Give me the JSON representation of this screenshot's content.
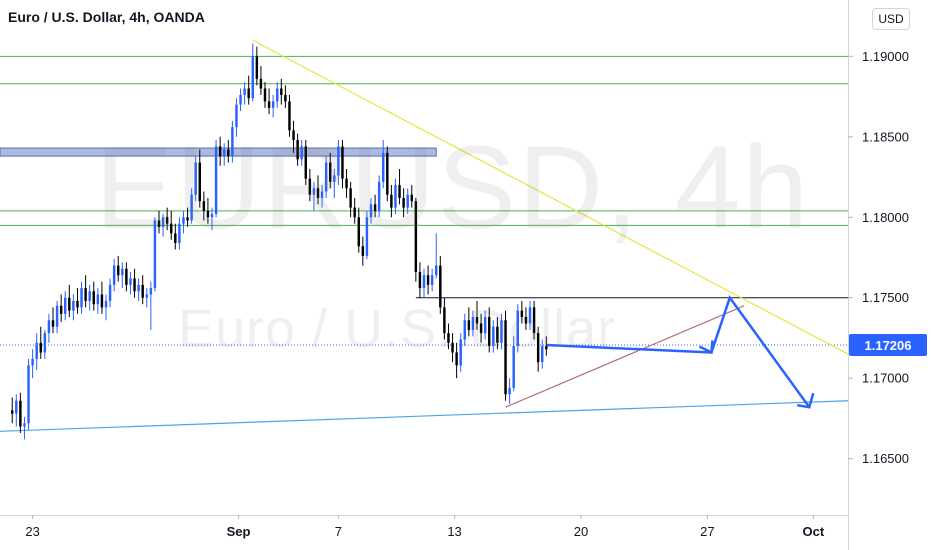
{
  "header": {
    "title": "Euro / U.S. Dollar, 4h, OANDA",
    "currency_button": "USD"
  },
  "watermark": {
    "symbol": "EURUSD, 4h",
    "name": "Euro / U.S. Dollar"
  },
  "last_price_label": "1.17206",
  "colors": {
    "up_candle": "#2962ff",
    "down_candle": "#000000",
    "resistance_lines": "#4caf50",
    "trendline_down": "#e6e63c",
    "trendline_support": "#4da3e6",
    "zone": "#8fa3d6",
    "projection": "#2962ff",
    "price_tag": "#2962ff"
  },
  "chart_data": {
    "type": "candlestick",
    "title": "Euro / U.S. Dollar, 4h, OANDA",
    "y_ticks": [
      "1.19000",
      "1.18500",
      "1.18000",
      "1.17500",
      "1.17000",
      "1.16500"
    ],
    "ylim": [
      1.1615,
      1.1935
    ],
    "x_ticks": [
      {
        "label": "23",
        "x": 0.0
      },
      {
        "label": "Sep",
        "x": 10.1
      },
      {
        "label": "7",
        "x": 15.0
      },
      {
        "label": "13",
        "x": 20.7
      },
      {
        "label": "20",
        "x": 26.9
      },
      {
        "label": "27",
        "x": 33.1
      },
      {
        "label": "Oct",
        "x": 38.3
      }
    ],
    "xlim": [
      -1.6,
      40.0
    ],
    "last_price": 1.17206,
    "candles": [
      [
        -1.0,
        1.168,
        1.1688,
        1.1672,
        1.1678
      ],
      [
        -0.8,
        1.1678,
        1.169,
        1.167,
        1.1686
      ],
      [
        -0.6,
        1.1686,
        1.1691,
        1.1666,
        1.167
      ],
      [
        -0.4,
        1.167,
        1.1676,
        1.1662,
        1.1672
      ],
      [
        -0.2,
        1.1672,
        1.1712,
        1.1668,
        1.1708
      ],
      [
        0.0,
        1.1708,
        1.1718,
        1.17,
        1.1712
      ],
      [
        0.2,
        1.1712,
        1.1728,
        1.1705,
        1.1722
      ],
      [
        0.4,
        1.1722,
        1.1732,
        1.1712,
        1.1716
      ],
      [
        0.6,
        1.1716,
        1.173,
        1.1712,
        1.1728
      ],
      [
        0.8,
        1.1728,
        1.174,
        1.1722,
        1.1736
      ],
      [
        1.0,
        1.1736,
        1.1744,
        1.1728,
        1.1732
      ],
      [
        1.2,
        1.1732,
        1.1748,
        1.1728,
        1.1745
      ],
      [
        1.4,
        1.1745,
        1.1752,
        1.1735,
        1.174
      ],
      [
        1.6,
        1.174,
        1.1754,
        1.1736,
        1.175
      ],
      [
        1.8,
        1.175,
        1.1758,
        1.1738,
        1.1742
      ],
      [
        2.0,
        1.1742,
        1.1752,
        1.1736,
        1.1748
      ],
      [
        2.2,
        1.1748,
        1.1756,
        1.174,
        1.1744
      ],
      [
        2.4,
        1.1744,
        1.176,
        1.174,
        1.1756
      ],
      [
        2.6,
        1.1756,
        1.1764,
        1.1744,
        1.1748
      ],
      [
        2.8,
        1.1748,
        1.1758,
        1.1742,
        1.1754
      ],
      [
        3.0,
        1.1754,
        1.176,
        1.1742,
        1.1746
      ],
      [
        3.2,
        1.1746,
        1.1756,
        1.174,
        1.1752
      ],
      [
        3.4,
        1.1752,
        1.176,
        1.174,
        1.1744
      ],
      [
        3.6,
        1.1744,
        1.1752,
        1.1736,
        1.1748
      ],
      [
        3.8,
        1.1748,
        1.1762,
        1.1744,
        1.1758
      ],
      [
        4.0,
        1.1758,
        1.1774,
        1.1754,
        1.177
      ],
      [
        4.2,
        1.177,
        1.1776,
        1.176,
        1.1764
      ],
      [
        4.4,
        1.1764,
        1.1772,
        1.1756,
        1.1768
      ],
      [
        4.6,
        1.1768,
        1.1772,
        1.1754,
        1.1758
      ],
      [
        4.8,
        1.1758,
        1.1766,
        1.1752,
        1.1762
      ],
      [
        5.0,
        1.1762,
        1.1768,
        1.175,
        1.1754
      ],
      [
        5.2,
        1.1754,
        1.1762,
        1.1748,
        1.1758
      ],
      [
        5.4,
        1.1758,
        1.1764,
        1.1746,
        1.175
      ],
      [
        5.6,
        1.175,
        1.1756,
        1.1744,
        1.1752
      ],
      [
        5.8,
        1.1752,
        1.176,
        1.173,
        1.1756
      ],
      [
        6.0,
        1.1756,
        1.18,
        1.1754,
        1.1798
      ],
      [
        6.2,
        1.1798,
        1.1804,
        1.179,
        1.1794
      ],
      [
        6.4,
        1.1794,
        1.1802,
        1.1788,
        1.18
      ],
      [
        6.6,
        1.18,
        1.1806,
        1.1792,
        1.1796
      ],
      [
        6.8,
        1.1796,
        1.1804,
        1.1786,
        1.179
      ],
      [
        7.0,
        1.179,
        1.1796,
        1.178,
        1.1784
      ],
      [
        7.2,
        1.1784,
        1.18,
        1.178,
        1.1796
      ],
      [
        7.4,
        1.1796,
        1.1804,
        1.179,
        1.18
      ],
      [
        7.6,
        1.18,
        1.1806,
        1.1794,
        1.1798
      ],
      [
        7.8,
        1.1798,
        1.1818,
        1.1796,
        1.1814
      ],
      [
        8.0,
        1.1814,
        1.1838,
        1.181,
        1.1834
      ],
      [
        8.2,
        1.1834,
        1.1842,
        1.1806,
        1.181
      ],
      [
        8.4,
        1.181,
        1.1816,
        1.1798,
        1.1804
      ],
      [
        8.6,
        1.1804,
        1.1812,
        1.1796,
        1.18
      ],
      [
        8.8,
        1.18,
        1.1806,
        1.1792,
        1.1802
      ],
      [
        9.0,
        1.1802,
        1.1848,
        1.18,
        1.1844
      ],
      [
        9.2,
        1.1844,
        1.185,
        1.1832,
        1.1838
      ],
      [
        9.4,
        1.1838,
        1.1846,
        1.1832,
        1.1842
      ],
      [
        9.6,
        1.1842,
        1.1848,
        1.1834,
        1.1838
      ],
      [
        9.8,
        1.1838,
        1.186,
        1.1834,
        1.1856
      ],
      [
        10.0,
        1.1856,
        1.1874,
        1.185,
        1.187
      ],
      [
        10.2,
        1.187,
        1.188,
        1.1866,
        1.1876
      ],
      [
        10.4,
        1.1876,
        1.1884,
        1.187,
        1.188
      ],
      [
        10.6,
        1.188,
        1.1888,
        1.187,
        1.1874
      ],
      [
        10.8,
        1.1874,
        1.1908,
        1.1872,
        1.19
      ],
      [
        11.0,
        1.19,
        1.1906,
        1.1882,
        1.1886
      ],
      [
        11.2,
        1.1886,
        1.1894,
        1.1876,
        1.188
      ],
      [
        11.4,
        1.188,
        1.1884,
        1.1868,
        1.1872
      ],
      [
        11.6,
        1.1872,
        1.188,
        1.1864,
        1.1868
      ],
      [
        11.8,
        1.1868,
        1.1876,
        1.1862,
        1.1872
      ],
      [
        12.0,
        1.1872,
        1.1884,
        1.1868,
        1.188
      ],
      [
        12.2,
        1.188,
        1.1886,
        1.187,
        1.1876
      ],
      [
        12.4,
        1.1876,
        1.1882,
        1.1868,
        1.1872
      ],
      [
        12.6,
        1.1872,
        1.1876,
        1.185,
        1.1854
      ],
      [
        12.8,
        1.1854,
        1.186,
        1.184,
        1.1848
      ],
      [
        13.0,
        1.1848,
        1.1852,
        1.1832,
        1.1836
      ],
      [
        13.2,
        1.1836,
        1.1848,
        1.1832,
        1.1844
      ],
      [
        13.4,
        1.1844,
        1.1848,
        1.182,
        1.1824
      ],
      [
        13.6,
        1.1824,
        1.183,
        1.181,
        1.1814
      ],
      [
        13.8,
        1.1814,
        1.1822,
        1.1804,
        1.1818
      ],
      [
        14.0,
        1.1818,
        1.1826,
        1.1808,
        1.1812
      ],
      [
        14.2,
        1.1812,
        1.182,
        1.1806,
        1.1816
      ],
      [
        14.4,
        1.1816,
        1.1838,
        1.1812,
        1.1834
      ],
      [
        14.6,
        1.1834,
        1.184,
        1.1818,
        1.1822
      ],
      [
        14.8,
        1.1822,
        1.183,
        1.1812,
        1.1826
      ],
      [
        15.0,
        1.1826,
        1.1848,
        1.182,
        1.1844
      ],
      [
        15.2,
        1.1844,
        1.1848,
        1.1818,
        1.1824
      ],
      [
        15.4,
        1.1824,
        1.183,
        1.1812,
        1.1818
      ],
      [
        15.6,
        1.1818,
        1.1822,
        1.18,
        1.1806
      ],
      [
        15.8,
        1.1806,
        1.1812,
        1.1796,
        1.18
      ],
      [
        16.0,
        1.18,
        1.1806,
        1.1778,
        1.1782
      ],
      [
        16.2,
        1.1782,
        1.1788,
        1.177,
        1.1776
      ],
      [
        16.4,
        1.1776,
        1.1804,
        1.1774,
        1.18
      ],
      [
        16.6,
        1.18,
        1.1812,
        1.1796,
        1.1808
      ],
      [
        16.8,
        1.1808,
        1.1814,
        1.18,
        1.1804
      ],
      [
        17.0,
        1.1804,
        1.1826,
        1.18,
        1.1822
      ],
      [
        17.2,
        1.1822,
        1.1848,
        1.1818,
        1.184
      ],
      [
        17.4,
        1.184,
        1.1844,
        1.181,
        1.1814
      ],
      [
        17.6,
        1.1814,
        1.182,
        1.18,
        1.1806
      ],
      [
        17.8,
        1.1806,
        1.1824,
        1.1802,
        1.182
      ],
      [
        18.0,
        1.182,
        1.183,
        1.1808,
        1.1812
      ],
      [
        18.2,
        1.1812,
        1.1818,
        1.18,
        1.1806
      ],
      [
        18.4,
        1.1806,
        1.1818,
        1.1802,
        1.1814
      ],
      [
        18.6,
        1.1814,
        1.182,
        1.1806,
        1.181
      ],
      [
        18.8,
        1.181,
        1.1812,
        1.176,
        1.1766
      ],
      [
        19.0,
        1.1766,
        1.1772,
        1.175,
        1.1756
      ],
      [
        19.2,
        1.1756,
        1.1768,
        1.175,
        1.1764
      ],
      [
        19.4,
        1.1764,
        1.177,
        1.1752,
        1.1758
      ],
      [
        19.6,
        1.1758,
        1.1768,
        1.1754,
        1.1764
      ],
      [
        19.8,
        1.1764,
        1.179,
        1.1762,
        1.177
      ],
      [
        20.0,
        1.177,
        1.1776,
        1.174,
        1.1744
      ],
      [
        20.2,
        1.1744,
        1.175,
        1.1724,
        1.1728
      ],
      [
        20.4,
        1.1728,
        1.1734,
        1.1718,
        1.1722
      ],
      [
        20.6,
        1.1722,
        1.1728,
        1.171,
        1.1716
      ],
      [
        20.8,
        1.1716,
        1.1722,
        1.17,
        1.1708
      ],
      [
        21.0,
        1.1708,
        1.1728,
        1.1704,
        1.1724
      ],
      [
        21.2,
        1.1724,
        1.174,
        1.172,
        1.1736
      ],
      [
        21.4,
        1.1736,
        1.1744,
        1.1726,
        1.173
      ],
      [
        21.6,
        1.173,
        1.1742,
        1.1726,
        1.1738
      ],
      [
        21.8,
        1.1738,
        1.1748,
        1.173,
        1.1734
      ],
      [
        22.0,
        1.1734,
        1.174,
        1.1722,
        1.1728
      ],
      [
        22.2,
        1.1728,
        1.1742,
        1.1724,
        1.1738
      ],
      [
        22.4,
        1.1738,
        1.1744,
        1.1716,
        1.172
      ],
      [
        22.6,
        1.172,
        1.1736,
        1.1716,
        1.1732
      ],
      [
        22.8,
        1.1732,
        1.1738,
        1.1718,
        1.1722
      ],
      [
        23.0,
        1.1722,
        1.174,
        1.1718,
        1.1736
      ],
      [
        23.2,
        1.1736,
        1.1742,
        1.1686,
        1.169
      ],
      [
        23.4,
        1.169,
        1.17,
        1.1684,
        1.1694
      ],
      [
        23.6,
        1.1694,
        1.1726,
        1.1692,
        1.172
      ],
      [
        23.8,
        1.172,
        1.1746,
        1.1716,
        1.1742
      ],
      [
        24.0,
        1.1742,
        1.1748,
        1.1734,
        1.1738
      ],
      [
        24.2,
        1.1738,
        1.1744,
        1.173,
        1.1734
      ],
      [
        24.4,
        1.1734,
        1.1748,
        1.173,
        1.1744
      ],
      [
        24.6,
        1.1744,
        1.1748,
        1.1724,
        1.1728
      ],
      [
        24.8,
        1.1728,
        1.1732,
        1.1704,
        1.171
      ],
      [
        25.0,
        1.171,
        1.1724,
        1.1706,
        1.172
      ],
      [
        25.2,
        1.172,
        1.1726,
        1.1714,
        1.1718
      ]
    ],
    "annotations": [
      {
        "type": "hline",
        "color": "green",
        "y": 1.19,
        "x_from": -1.6,
        "x_to": 40.0
      },
      {
        "type": "hline",
        "color": "green",
        "y": 1.1883,
        "x_from": -1.6,
        "x_to": 40.0
      },
      {
        "type": "hline",
        "color": "green",
        "y": 1.1804,
        "x_from": -1.6,
        "x_to": 40.0
      },
      {
        "type": "hline",
        "color": "green",
        "y": 1.1795,
        "x_from": -1.6,
        "x_to": 40.0
      },
      {
        "type": "zone",
        "color": "blue-grey",
        "y_from": 1.1838,
        "y_to": 1.1843,
        "x_from": -1.6,
        "x_to": 19.8
      },
      {
        "type": "hline",
        "color": "black",
        "y": 1.175,
        "x_from": 18.8,
        "x_to": 40.0
      },
      {
        "type": "hline",
        "color": "dotted-blue",
        "y": 1.17206,
        "x_from": -1.6,
        "x_to": 40.0
      },
      {
        "type": "trendline",
        "color": "yellow",
        "points": [
          [
            10.8,
            1.191
          ],
          [
            40.0,
            1.1715
          ]
        ]
      },
      {
        "type": "trendline",
        "color": "light-blue",
        "points": [
          [
            -1.6,
            1.1667
          ],
          [
            40.0,
            1.1686
          ]
        ]
      },
      {
        "type": "trendline",
        "color": "maroon",
        "points": [
          [
            23.2,
            1.1682
          ],
          [
            34.9,
            1.1745
          ]
        ]
      },
      {
        "type": "projection",
        "color": "blue",
        "points": [
          [
            25.2,
            1.17206
          ],
          [
            33.3,
            1.1716
          ],
          [
            34.2,
            1.175
          ],
          [
            38.1,
            1.1682
          ]
        ],
        "arrow_at_end": true
      }
    ]
  }
}
